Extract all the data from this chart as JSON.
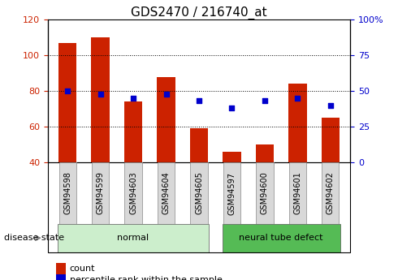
{
  "title": "GDS2470 / 216740_at",
  "samples": [
    "GSM94598",
    "GSM94599",
    "GSM94603",
    "GSM94604",
    "GSM94605",
    "GSM94597",
    "GSM94600",
    "GSM94601",
    "GSM94602"
  ],
  "count_values": [
    107,
    110,
    74,
    88,
    59,
    46,
    50,
    84,
    65
  ],
  "percentile_values": [
    50,
    48,
    45,
    48,
    43,
    38,
    43,
    45,
    40
  ],
  "bar_color": "#cc2200",
  "dot_color": "#0000cc",
  "ylim_left": [
    40,
    120
  ],
  "ylim_right": [
    0,
    100
  ],
  "yticks_left": [
    40,
    60,
    80,
    100,
    120
  ],
  "yticks_right": [
    0,
    25,
    50,
    75,
    100
  ],
  "yticklabels_right": [
    "0",
    "25",
    "50",
    "75",
    "100%"
  ],
  "disease_groups": [
    {
      "label": "normal",
      "indices": [
        0,
        1,
        2,
        3,
        4
      ],
      "color": "#cceecc"
    },
    {
      "label": "neural tube defect",
      "indices": [
        5,
        6,
        7,
        8
      ],
      "color": "#55bb55"
    }
  ],
  "group_label": "disease state",
  "legend_count": "count",
  "legend_percentile": "percentile rank within the sample",
  "bar_width": 0.55,
  "tick_fontsize": 8,
  "title_fontsize": 11,
  "sample_fontsize": 7,
  "group_fontsize": 8
}
